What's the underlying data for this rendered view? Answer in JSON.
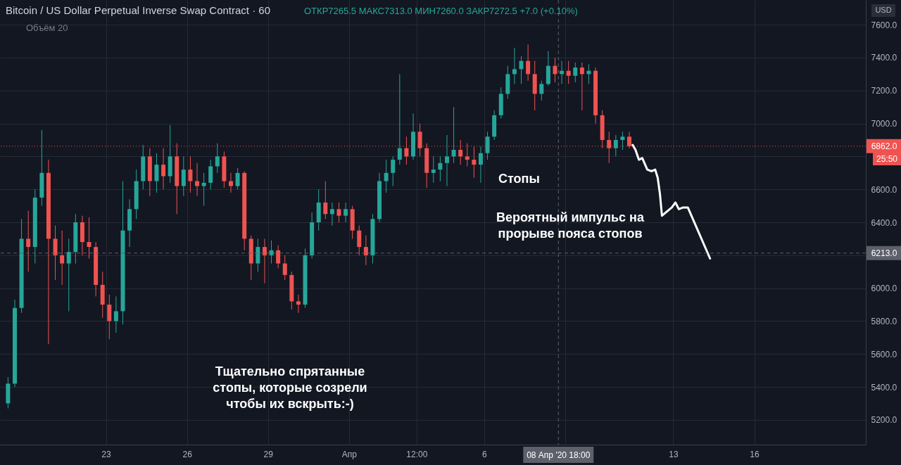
{
  "chart_data": {
    "type": "candlestick",
    "title": "Bitcoin / US Dollar Perpetual Inverse Swap Contract · 60",
    "subtitle": "ОТКР7265.5 МАКС7313.0 МИН7260.0 ЗАКР7272.5 +7.0 (+0.10%)",
    "x": [
      "2020-03-19T09:00",
      "2020-03-19T15:00",
      "2020-03-19T21:00",
      "2020-03-20T03:00",
      "2020-03-20T09:00",
      "2020-03-20T15:00",
      "2020-03-20T21:00",
      "2020-03-21T03:00",
      "2020-03-21T09:00",
      "2020-03-21T15:00",
      "2020-03-21T21:00",
      "2020-03-22T03:00",
      "2020-03-22T09:00",
      "2020-03-22T15:00",
      "2020-03-22T21:00",
      "2020-03-23T03:00",
      "2020-03-23T09:00",
      "2020-03-23T15:00",
      "2020-03-23T21:00",
      "2020-03-24T03:00",
      "2020-03-24T09:00",
      "2020-03-24T15:00",
      "2020-03-24T21:00",
      "2020-03-25T03:00",
      "2020-03-25T09:00",
      "2020-03-25T15:00",
      "2020-03-25T21:00",
      "2020-03-26T03:00",
      "2020-03-26T09:00",
      "2020-03-26T15:00",
      "2020-03-26T21:00",
      "2020-03-27T03:00",
      "2020-03-27T09:00",
      "2020-03-27T15:00",
      "2020-03-27T21:00",
      "2020-03-28T03:00",
      "2020-03-28T09:00",
      "2020-03-28T15:00",
      "2020-03-28T21:00",
      "2020-03-29T03:00",
      "2020-03-29T09:00",
      "2020-03-29T15:00",
      "2020-03-29T21:00",
      "2020-03-30T03:00",
      "2020-03-30T09:00",
      "2020-03-30T15:00",
      "2020-03-30T21:00",
      "2020-03-31T03:00",
      "2020-03-31T09:00",
      "2020-03-31T15:00",
      "2020-03-31T21:00",
      "2020-04-01T03:00",
      "2020-04-01T09:00",
      "2020-04-01T15:00",
      "2020-04-01T21:00",
      "2020-04-02T03:00",
      "2020-04-02T09:00",
      "2020-04-02T15:00",
      "2020-04-02T21:00",
      "2020-04-03T03:00",
      "2020-04-03T09:00",
      "2020-04-03T15:00",
      "2020-04-03T21:00",
      "2020-04-04T03:00",
      "2020-04-04T09:00",
      "2020-04-04T15:00",
      "2020-04-04T21:00",
      "2020-04-05T03:00",
      "2020-04-05T09:00",
      "2020-04-05T15:00",
      "2020-04-05T21:00",
      "2020-04-06T03:00",
      "2020-04-06T09:00",
      "2020-04-06T15:00",
      "2020-04-06T21:00",
      "2020-04-07T03:00",
      "2020-04-07T09:00",
      "2020-04-07T15:00",
      "2020-04-07T21:00",
      "2020-04-08T03:00",
      "2020-04-08T09:00",
      "2020-04-08T15:00",
      "2020-04-08T21:00",
      "2020-04-09T03:00",
      "2020-04-09T09:00",
      "2020-04-09T15:00",
      "2020-04-09T21:00",
      "2020-04-10T03:00",
      "2020-04-10T09:00",
      "2020-04-10T15:00",
      "2020-04-10T21:00",
      "2020-04-11T03:00",
      "2020-04-11T09:00"
    ],
    "ohlc": [
      [
        5300,
        5460,
        5270,
        5420
      ],
      [
        5420,
        5930,
        5400,
        5880
      ],
      [
        5880,
        6420,
        5850,
        6300
      ],
      [
        6300,
        6470,
        6100,
        6250
      ],
      [
        6250,
        6600,
        6150,
        6550
      ],
      [
        6550,
        6960,
        6500,
        6700
      ],
      [
        6700,
        6780,
        5660,
        6300
      ],
      [
        6300,
        6380,
        6050,
        6200
      ],
      [
        6200,
        6350,
        6020,
        6150
      ],
      [
        6150,
        6300,
        5860,
        6220
      ],
      [
        6220,
        6450,
        6150,
        6400
      ],
      [
        6400,
        6440,
        6200,
        6280
      ],
      [
        6280,
        6430,
        6180,
        6250
      ],
      [
        6250,
        6280,
        5950,
        6020
      ],
      [
        6020,
        6100,
        5820,
        5900
      ],
      [
        5900,
        5960,
        5690,
        5800
      ],
      [
        5800,
        5950,
        5730,
        5860
      ],
      [
        5860,
        6650,
        5780,
        6350
      ],
      [
        6350,
        6540,
        6250,
        6480
      ],
      [
        6480,
        6720,
        6420,
        6650
      ],
      [
        6650,
        6870,
        6600,
        6800
      ],
      [
        6800,
        6850,
        6560,
        6650
      ],
      [
        6650,
        6820,
        6580,
        6750
      ],
      [
        6750,
        6850,
        6600,
        6680
      ],
      [
        6680,
        6990,
        6640,
        6800
      ],
      [
        6800,
        6880,
        6450,
        6620
      ],
      [
        6620,
        6800,
        6560,
        6720
      ],
      [
        6720,
        6800,
        6580,
        6650
      ],
      [
        6650,
        6760,
        6560,
        6620
      ],
      [
        6620,
        6700,
        6500,
        6640
      ],
      [
        6640,
        6780,
        6600,
        6740
      ],
      [
        6740,
        6880,
        6700,
        6800
      ],
      [
        6800,
        6830,
        6610,
        6650
      ],
      [
        6650,
        6700,
        6580,
        6620
      ],
      [
        6620,
        6730,
        6600,
        6700
      ],
      [
        6700,
        6710,
        6230,
        6300
      ],
      [
        6300,
        6320,
        6050,
        6150
      ],
      [
        6150,
        6300,
        6100,
        6250
      ],
      [
        6250,
        6300,
        6030,
        6200
      ],
      [
        6200,
        6290,
        6150,
        6230
      ],
      [
        6230,
        6260,
        6120,
        6150
      ],
      [
        6150,
        6200,
        6050,
        6080
      ],
      [
        6080,
        6100,
        5870,
        5920
      ],
      [
        5920,
        5960,
        5850,
        5900
      ],
      [
        5900,
        6240,
        5880,
        6200
      ],
      [
        6200,
        6460,
        6180,
        6400
      ],
      [
        6400,
        6600,
        6350,
        6520
      ],
      [
        6520,
        6650,
        6420,
        6450
      ],
      [
        6450,
        6520,
        6380,
        6480
      ],
      [
        6480,
        6520,
        6400,
        6440
      ],
      [
        6440,
        6520,
        6400,
        6480
      ],
      [
        6480,
        6500,
        6300,
        6350
      ],
      [
        6350,
        6380,
        6200,
        6250
      ],
      [
        6250,
        6320,
        6140,
        6200
      ],
      [
        6200,
        6450,
        6150,
        6420
      ],
      [
        6420,
        6700,
        6400,
        6650
      ],
      [
        6650,
        6780,
        6580,
        6700
      ],
      [
        6700,
        6800,
        6620,
        6780
      ],
      [
        6780,
        7300,
        6750,
        6850
      ],
      [
        6850,
        6920,
        6750,
        6800
      ],
      [
        6800,
        7060,
        6780,
        6950
      ],
      [
        6950,
        7000,
        6800,
        6850
      ],
      [
        6850,
        6880,
        6610,
        6700
      ],
      [
        6700,
        6800,
        6640,
        6720
      ],
      [
        6720,
        6800,
        6650,
        6760
      ],
      [
        6760,
        6930,
        6620,
        6800
      ],
      [
        6800,
        7100,
        6760,
        6840
      ],
      [
        6840,
        6900,
        6750,
        6800
      ],
      [
        6800,
        6880,
        6740,
        6780
      ],
      [
        6780,
        6860,
        6670,
        6750
      ],
      [
        6750,
        6860,
        6640,
        6820
      ],
      [
        6820,
        6950,
        6780,
        6920
      ],
      [
        6920,
        7080,
        6900,
        7050
      ],
      [
        7050,
        7220,
        7030,
        7180
      ],
      [
        7180,
        7350,
        7150,
        7300
      ],
      [
        7300,
        7460,
        7240,
        7330
      ],
      [
        7330,
        7410,
        7240,
        7380
      ],
      [
        7380,
        7480,
        7260,
        7300
      ],
      [
        7300,
        7380,
        7080,
        7180
      ],
      [
        7180,
        7260,
        7140,
        7240
      ],
      [
        7240,
        7440,
        7230,
        7350
      ],
      [
        7350,
        7400,
        7250,
        7300
      ],
      [
        7300,
        7380,
        7240,
        7320
      ],
      [
        7320,
        7380,
        7240,
        7290
      ],
      [
        7290,
        7370,
        7250,
        7340
      ],
      [
        7340,
        7370,
        7080,
        7300
      ],
      [
        7300,
        7360,
        7240,
        7320
      ],
      [
        7320,
        7340,
        7000,
        7050
      ],
      [
        7050,
        7080,
        6850,
        6900
      ],
      [
        6900,
        6950,
        6760,
        6850
      ],
      [
        6850,
        6930,
        6800,
        6900
      ],
      [
        6900,
        6950,
        6840,
        6920
      ],
      [
        6920,
        6950,
        6850,
        6862
      ]
    ],
    "colors": [
      "#26a69a",
      "#26a69a",
      "#26a69a",
      "#ef5350",
      "#26a69a",
      "#26a69a",
      "#ef5350",
      "#ef5350",
      "#ef5350",
      "#26a69a",
      "#26a69a",
      "#ef5350",
      "#ef5350",
      "#ef5350",
      "#ef5350",
      "#ef5350",
      "#26a69a",
      "#26a69a",
      "#26a69a",
      "#26a69a",
      "#26a69a",
      "#ef5350",
      "#26a69a",
      "#ef5350",
      "#26a69a",
      "#ef5350",
      "#26a69a",
      "#ef5350",
      "#ef5350",
      "#26a69a",
      "#26a69a",
      "#26a69a",
      "#ef5350",
      "#ef5350",
      "#26a69a",
      "#ef5350",
      "#ef5350",
      "#26a69a",
      "#ef5350",
      "#26a69a",
      "#ef5350",
      "#ef5350",
      "#ef5350",
      "#ef5350",
      "#26a69a",
      "#26a69a",
      "#26a69a",
      "#ef5350",
      "#26a69a",
      "#ef5350",
      "#26a69a",
      "#ef5350",
      "#ef5350",
      "#ef5350",
      "#26a69a",
      "#26a69a",
      "#26a69a",
      "#26a69a",
      "#26a69a",
      "#ef5350",
      "#26a69a",
      "#ef5350",
      "#ef5350",
      "#26a69a",
      "#26a69a",
      "#26a69a",
      "#26a69a",
      "#ef5350",
      "#ef5350",
      "#ef5350",
      "#26a69a",
      "#26a69a",
      "#26a69a",
      "#26a69a",
      "#26a69a",
      "#26a69a",
      "#26a69a",
      "#ef5350",
      "#ef5350",
      "#26a69a",
      "#26a69a",
      "#ef5350",
      "#26a69a",
      "#ef5350",
      "#26a69a",
      "#ef5350",
      "#26a69a",
      "#ef5350",
      "#ef5350",
      "#ef5350",
      "#26a69a",
      "#26a69a",
      "#ef5350"
    ],
    "series": [
      {
        "type": "line",
        "color": "#ffffff",
        "x": [
          "2020-04-11T12:00",
          "2020-04-11T14:30",
          "2020-04-11T17:30",
          "2020-04-11T20:30",
          "2020-04-12T01:00",
          "2020-04-12T04:45",
          "2020-04-12T08:00",
          "2020-04-12T10:15",
          "2020-04-12T12:15",
          "2020-04-12T14:00",
          "2020-04-12T22:45",
          "2020-04-13T02:00",
          "2020-04-13T05:00",
          "2020-04-13T08:45",
          "2020-04-13T13:00",
          "2020-04-14T08:45"
        ],
        "values": [
          6870,
          6840,
          6780,
          6790,
          6720,
          6710,
          6720,
          6670,
          6570,
          6440,
          6490,
          6520,
          6480,
          6490,
          6490,
          6180
        ]
      }
    ],
    "xlim": [
      "2020-03-19T05:00",
      "2020-04-20"
    ],
    "xticks": [
      {
        "value": "2020-03-23",
        "label": "23"
      },
      {
        "value": "2020-03-26",
        "label": "26"
      },
      {
        "value": "2020-03-29",
        "label": "29"
      },
      {
        "value": "2020-04-01",
        "label": "Апр"
      },
      {
        "value": "2020-04-03T12:00",
        "label": "12:00"
      },
      {
        "value": "2020-04-06",
        "label": "6"
      },
      {
        "value": "2020-04-09",
        "label": null
      },
      {
        "value": "2020-04-13",
        "label": "13"
      },
      {
        "value": "2020-04-16",
        "label": "16"
      }
    ],
    "ylim": [
      5050,
      7750
    ],
    "yticks": [
      {
        "value": 5200,
        "label": "5200.0"
      },
      {
        "value": 5400,
        "label": "5400.0"
      },
      {
        "value": 5600,
        "label": "5600.0"
      },
      {
        "value": 5800,
        "label": "5800.0"
      },
      {
        "value": 6000,
        "label": "6000.0"
      },
      {
        "value": 6200,
        "label": null
      },
      {
        "value": 6400,
        "label": "6400.0"
      },
      {
        "value": 6600,
        "label": "6600.0"
      },
      {
        "value": 6800,
        "label": null
      },
      {
        "value": 7000,
        "label": "7000.0"
      },
      {
        "value": 7200,
        "label": "7200.0"
      },
      {
        "value": 7400,
        "label": "7400.0"
      },
      {
        "value": 7600,
        "label": "7600.0"
      }
    ],
    "grid": true,
    "ref_lines": [
      {
        "axis": "y",
        "value": 6862,
        "label": "6862.0",
        "color": "#ef5350",
        "line_style": "dotted"
      },
      {
        "axis": "y",
        "value": 6213,
        "label": "6213.0",
        "color": "#5d606b",
        "line_style": "dashed"
      },
      {
        "axis": "x",
        "value": "2020-04-08T18:00",
        "label": "08 Апр '20  18:00",
        "color": "#5d606b",
        "line_style": "dashed"
      }
    ],
    "annotations": [
      "Объём 20",
      "USD",
      "25:50",
      "Стопы",
      "Вероятный импульс на прорыве пояса стопов",
      "Тщательно спрятанные стопы, которые созрели чтобы их вскрыть:-)"
    ]
  }
}
